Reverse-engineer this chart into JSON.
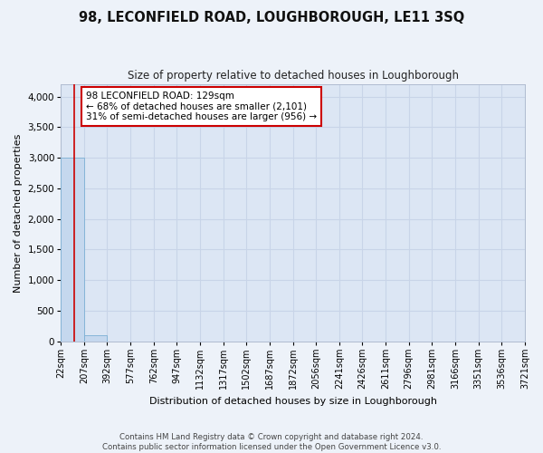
{
  "title": "98, LECONFIELD ROAD, LOUGHBOROUGH, LE11 3SQ",
  "subtitle": "Size of property relative to detached houses in Loughborough",
  "xlabel": "Distribution of detached houses by size in Loughborough",
  "ylabel": "Number of detached properties",
  "footer_line1": "Contains HM Land Registry data © Crown copyright and database right 2024.",
  "footer_line2": "Contains public sector information licensed under the Open Government Licence v3.0.",
  "bin_edges": [
    22,
    207,
    392,
    577,
    762,
    947,
    1132,
    1317,
    1502,
    1687,
    1872,
    2056,
    2241,
    2426,
    2611,
    2796,
    2981,
    3166,
    3351,
    3536,
    3721
  ],
  "bar_heights": [
    3000,
    100,
    0,
    0,
    0,
    0,
    0,
    0,
    0,
    0,
    0,
    0,
    0,
    0,
    0,
    0,
    0,
    0,
    0,
    0
  ],
  "bar_color": "#c5d8ee",
  "bar_edge_color": "#7bafd4",
  "property_size": 129,
  "vline_color": "#cc0000",
  "ylim": [
    0,
    4200
  ],
  "yticks": [
    0,
    500,
    1000,
    1500,
    2000,
    2500,
    3000,
    3500,
    4000
  ],
  "annotation_line1": "98 LECONFIELD ROAD: 129sqm",
  "annotation_line2": "← 68% of detached houses are smaller (2,101)",
  "annotation_line3": "31% of semi-detached houses are larger (956) →",
  "annotation_box_color": "#ffffff",
  "annotation_box_edge": "#cc0000",
  "bg_color": "#edf2f9",
  "plot_bg_color": "#dce6f4",
  "grid_color": "#c8d4e8",
  "title_fontsize": 10.5,
  "subtitle_fontsize": 8.5,
  "axis_label_fontsize": 8,
  "tick_label_fontsize": 7,
  "annotation_fontsize": 7.5,
  "ylabel_fontsize": 8
}
